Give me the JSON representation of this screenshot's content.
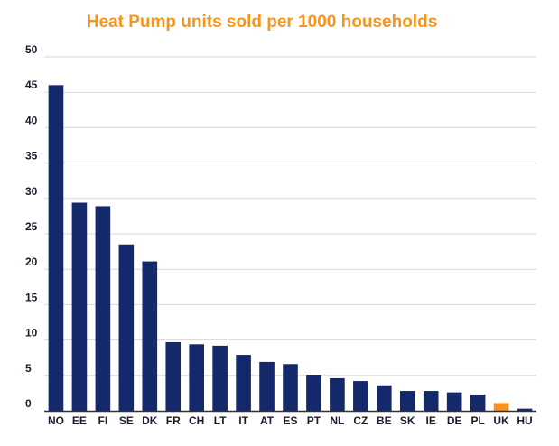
{
  "chart_data": {
    "type": "bar",
    "title": "Heat Pump units sold per 1000 households",
    "xlabel": "",
    "ylabel": "",
    "categories": [
      "NO",
      "EE",
      "FI",
      "SE",
      "DK",
      "FR",
      "CH",
      "LT",
      "IT",
      "AT",
      "ES",
      "PT",
      "NL",
      "CZ",
      "BE",
      "SK",
      "IE",
      "DE",
      "PL",
      "UK",
      "HU"
    ],
    "values": [
      46.0,
      29.4,
      28.9,
      23.5,
      21.1,
      9.7,
      9.4,
      9.2,
      7.9,
      6.9,
      6.6,
      5.1,
      4.6,
      4.2,
      3.6,
      2.8,
      2.8,
      2.6,
      2.3,
      1.1,
      0.3
    ],
    "highlight": "UK",
    "ylim": [
      0,
      50
    ],
    "yticks": [
      0,
      5,
      10,
      15,
      20,
      25,
      30,
      35,
      40,
      45,
      50
    ],
    "grid": true,
    "legend": "none",
    "colors": {
      "bar": "#14296B",
      "highlight": "#F7941D",
      "title": "#F7941D",
      "grid": "#D9D9D9",
      "axis": "#333333",
      "tick_text": "#1A1A2E"
    }
  }
}
